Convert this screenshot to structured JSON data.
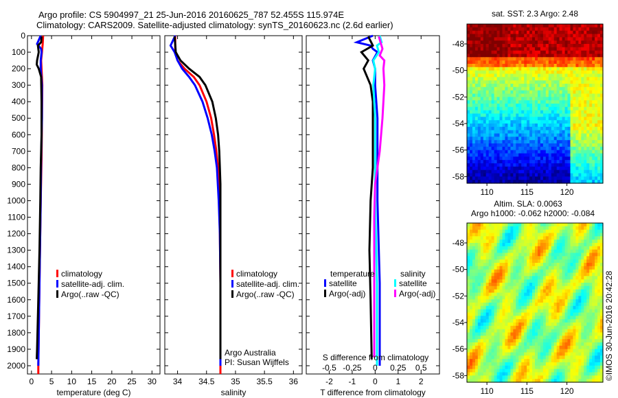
{
  "title_line1": "Argo profile: CS 5904997_21 25-Jun-2016 20160625_787 52.455S 115.974E",
  "title_line2": "Climatology: CARS2009. Satellite-adjusted climatology: synTS_20160623.nc (2.6d earlier)",
  "watermark": "©IMOS 30-Jun-2016 20:42:28",
  "colors": {
    "clim": "#ff0000",
    "sat": "#0000ff",
    "argo": "#000000",
    "sal_sat": "#00ffff",
    "sal_argo": "#ff00ff"
  },
  "chart_data": [
    {
      "type": "line",
      "name": "temperature",
      "xlabel": "temperature (deg C)",
      "xlim": [
        -1,
        32
      ],
      "xticks": [
        0,
        5,
        10,
        15,
        20,
        25,
        30
      ],
      "ylim": [
        2050,
        0
      ],
      "yticks": [
        0,
        100,
        200,
        300,
        400,
        500,
        600,
        700,
        800,
        900,
        1000,
        1100,
        1200,
        1300,
        1400,
        1500,
        1600,
        1700,
        1800,
        1900,
        2000
      ],
      "legend": [
        "climatology",
        "satellite-adj. clim.",
        "Argo(..raw -QC)"
      ],
      "series": [
        {
          "name": "climatology",
          "color": "#ff0000",
          "depth": [
            0,
            50,
            100,
            150,
            200,
            300,
            500,
            750,
            1000,
            1500,
            2000,
            2050
          ],
          "values": [
            2.9,
            2.8,
            2.6,
            2.4,
            2.5,
            2.7,
            2.6,
            2.5,
            2.3,
            2.0,
            1.7,
            1.7
          ]
        },
        {
          "name": "satellite-adj. clim.",
          "color": "#0000ff",
          "depth": [
            0,
            50,
            80,
            100,
            150,
            200,
            300,
            500,
            750,
            1000,
            1500,
            2000,
            1980
          ],
          "values": [
            2.3,
            1.4,
            2.4,
            2.5,
            2.3,
            2.3,
            2.6,
            2.6,
            2.4,
            2.3,
            2.0,
            1.7,
            1.7
          ]
        },
        {
          "name": "Argo",
          "color": "#000000",
          "depth": [
            5,
            40,
            60,
            100,
            150,
            175,
            200,
            250,
            400,
            600,
            800,
            1000,
            1300,
            1600,
            1900,
            1960
          ],
          "values": [
            2.5,
            2.4,
            1.6,
            1.8,
            1.4,
            1.3,
            1.8,
            2.4,
            2.5,
            2.5,
            2.3,
            2.2,
            2.0,
            1.7,
            1.4,
            1.3
          ]
        }
      ]
    },
    {
      "type": "line",
      "name": "salinity",
      "xlabel": "salinity",
      "xlim": [
        33.78,
        36.15
      ],
      "xticks": [
        34,
        34.5,
        35,
        35.5,
        36
      ],
      "ylim": [
        2050,
        0
      ],
      "legend": [
        "climatology",
        "satellite-adj. clim.",
        "Argo(..raw -QC)"
      ],
      "annotation": [
        "Argo Australia",
        "PI: Susan Wijffels"
      ],
      "series": [
        {
          "name": "climatology",
          "color": "#ff0000",
          "depth": [
            0,
            100,
            150,
            200,
            250,
            300,
            400,
            500,
            600,
            700,
            800,
            1000,
            1200,
            1500,
            2000,
            2050
          ],
          "values": [
            33.96,
            33.96,
            34.0,
            34.12,
            34.28,
            34.38,
            34.5,
            34.58,
            34.63,
            34.67,
            34.7,
            34.72,
            34.73,
            34.74,
            34.74,
            34.74
          ]
        },
        {
          "name": "satellite-adj. clim.",
          "color": "#0000ff",
          "depth": [
            0,
            60,
            100,
            150,
            200,
            250,
            300,
            400,
            500,
            600,
            700,
            800,
            1000,
            1200,
            1500,
            2000,
            1960
          ],
          "values": [
            33.96,
            33.88,
            33.95,
            34.0,
            34.08,
            34.2,
            34.3,
            34.43,
            34.52,
            34.59,
            34.64,
            34.68,
            34.71,
            34.73,
            34.74,
            34.74,
            34.74
          ]
        },
        {
          "name": "Argo",
          "color": "#000000",
          "depth": [
            5,
            100,
            150,
            200,
            250,
            300,
            400,
            500,
            600,
            700,
            800,
            900,
            1000,
            1200,
            1500,
            1960
          ],
          "values": [
            33.95,
            33.97,
            34.05,
            34.2,
            34.38,
            34.48,
            34.6,
            34.66,
            34.7,
            34.72,
            34.73,
            34.74,
            34.74,
            34.74,
            34.74,
            34.74
          ]
        }
      ]
    },
    {
      "type": "line",
      "name": "differences",
      "xlabel": "T difference from climatology",
      "xlim": [
        -3,
        2.8
      ],
      "xticks": [
        -2,
        -1,
        0,
        1,
        2
      ],
      "s_axis": {
        "label": "S difference from climatology",
        "ticks": [
          "-0.5",
          "-0.25",
          "0",
          "0.25",
          "0.5"
        ],
        "values": [
          -0.5,
          -0.25,
          0,
          0.25,
          0.5
        ]
      },
      "legend": {
        "temperature_title": "temperature",
        "salinity_title": "salinity",
        "items": [
          "satellite",
          "Argo(-adj)",
          "satellite",
          "Argo(-adj)"
        ]
      },
      "series": [
        {
          "name": "T satellite",
          "color": "#0000ff",
          "scale": "T",
          "depth": [
            0,
            40,
            60,
            80,
            100,
            150,
            200,
            300,
            500,
            800,
            1000,
            1500,
            2000
          ],
          "values": [
            -0.1,
            -0.8,
            -0.2,
            -0.1,
            0.1,
            -0.1,
            0.0,
            0.0,
            0.1,
            0.1,
            0.1,
            0.2,
            0.2
          ]
        },
        {
          "name": "T Argo(-adj)",
          "color": "#000000",
          "scale": "T",
          "depth": [
            5,
            60,
            100,
            150,
            200,
            300,
            400,
            600,
            800,
            1000,
            1300,
            1600,
            1960
          ],
          "values": [
            -0.3,
            -0.1,
            -0.6,
            -0.3,
            -0.5,
            -0.2,
            -0.1,
            -0.1,
            -0.1,
            -0.2,
            -0.25,
            -0.2,
            -0.15
          ]
        },
        {
          "name": "S satellite",
          "color": "#00ffff",
          "scale": "S",
          "depth": [
            0,
            40,
            60,
            100,
            150,
            200,
            300,
            500,
            800,
            1000,
            1500,
            2000
          ],
          "values": [
            0.05,
            0.07,
            0.02,
            0.04,
            -0.02,
            0.0,
            -0.02,
            0.0,
            0.0,
            0.0,
            0.02,
            0.02
          ]
        },
        {
          "name": "S Argo(-adj)",
          "color": "#ff00ff",
          "scale": "S",
          "depth": [
            5,
            80,
            120,
            150,
            200,
            300,
            500,
            700,
            900,
            1100,
            1500,
            1950
          ],
          "values": [
            0.04,
            0.08,
            0.05,
            0.1,
            0.09,
            0.1,
            0.08,
            0.05,
            0.0,
            -0.01,
            -0.01,
            -0.01
          ]
        }
      ]
    },
    {
      "type": "heatmap",
      "name": "sst-map",
      "title": "sat. SST: 2.3 Argo: 2.48",
      "xlim": [
        107.5,
        124.5
      ],
      "ylim": [
        -58.5,
        -46.5
      ],
      "xticks": [
        110,
        115,
        120
      ],
      "yticks": [
        -48,
        -50,
        -52,
        -54,
        -56,
        -58
      ]
    },
    {
      "type": "heatmap",
      "name": "sla-map",
      "title": "Altim. SLA: 0.0063",
      "subtitle": "Argo h1000: -0.062 h2000: -0.084",
      "xlim": [
        107.5,
        124.5
      ],
      "ylim": [
        -58.5,
        -46.5
      ],
      "xticks": [
        110,
        115,
        120
      ],
      "yticks": [
        -48,
        -50,
        -52,
        -54,
        -56,
        -58
      ]
    }
  ]
}
